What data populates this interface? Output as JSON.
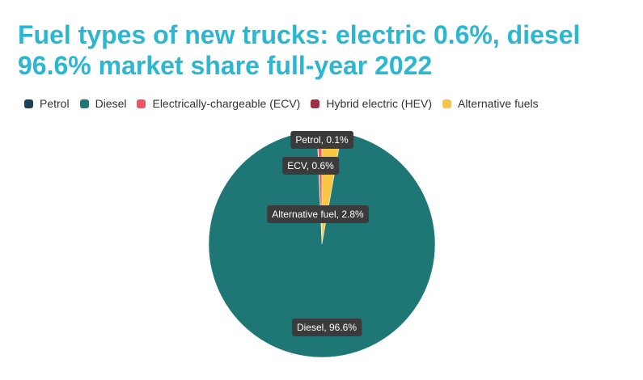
{
  "chart_data": {
    "type": "pie",
    "title": "Fuel types of new trucks: electric 0.6%, diesel 96.6% market share full-year 2022",
    "legend_position": "top-left",
    "slices": [
      {
        "name": "Petrol",
        "value": 0.1,
        "color": "#1c3f5c",
        "label": "Petrol, 0.1%"
      },
      {
        "name": "Electrically-chargeable (ECV)",
        "value": 0.6,
        "color": "#ee5565",
        "label": "ECV, 0.6%"
      },
      {
        "name": "Hybrid electric (HEV)",
        "value": 0.0,
        "color": "#9e2f45"
      },
      {
        "name": "Alternative fuels",
        "value": 2.8,
        "color": "#f7c744",
        "label": "Alternative fuel, 2.8%"
      },
      {
        "name": "Diesel",
        "value": 96.6,
        "color": "#1e7775",
        "label": "Diesel, 96.6%"
      }
    ],
    "legend": [
      {
        "name": "Petrol",
        "color": "#1c3f5c"
      },
      {
        "name": "Diesel",
        "color": "#1e7775"
      },
      {
        "name": "Electrically-chargeable (ECV)",
        "color": "#ee5565"
      },
      {
        "name": "Hybrid electric (HEV)",
        "color": "#9e2f45"
      },
      {
        "name": "Alternative fuels",
        "color": "#f7c744"
      }
    ]
  }
}
